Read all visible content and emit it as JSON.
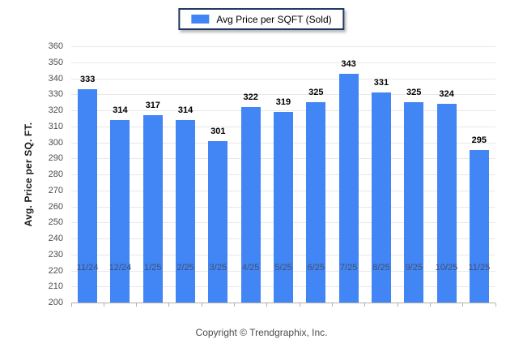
{
  "legend": {
    "label": "Avg Price per SQFT (Sold)",
    "swatch_color": "#4285f4"
  },
  "y_axis": {
    "title": "Avg. Price per SQ. FT."
  },
  "footer": {
    "copyright": "Copyright © Trendgraphix, Inc."
  },
  "colors": {
    "bar": "#4285f4",
    "grid": "#e8e8e8",
    "axis_line": "#b0b0b0",
    "x_tick_label": "#44506b",
    "y_tick_label": "#4d4d4d",
    "value_label": "#000000",
    "legend_border": "#203864"
  },
  "chart_data": {
    "type": "bar",
    "title": "",
    "xlabel": "",
    "ylabel": "Avg. Price per SQ. FT.",
    "categories": [
      "11/24",
      "12/24",
      "1/25",
      "2/25",
      "3/25",
      "4/25",
      "5/25",
      "6/25",
      "7/25",
      "8/25",
      "9/25",
      "10/25",
      "11/25"
    ],
    "series": [
      {
        "name": "Avg Price per SQFT (Sold)",
        "values": [
          333,
          314,
          317,
          314,
          301,
          322,
          319,
          325,
          343,
          331,
          325,
          324,
          295
        ]
      }
    ],
    "ylim": [
      200,
      360
    ],
    "ytick_step": 10,
    "grid": true,
    "legend_position": "top-center"
  }
}
